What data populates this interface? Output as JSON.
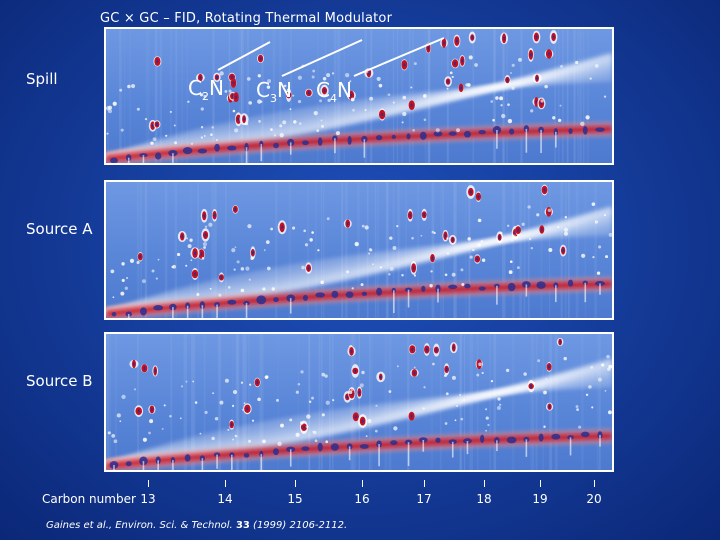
{
  "header": {
    "title": "GC × GC – FID,  Rotating Thermal Modulator"
  },
  "chart_data": {
    "type": "heatmap",
    "title": "GC × GC – FID,  Rotating Thermal Modulator",
    "xlabel": "Carbon number",
    "x_ticks": [
      "13",
      "14",
      "15",
      "16",
      "17",
      "18",
      "19",
      "20"
    ],
    "panels": [
      {
        "label": "Spill"
      },
      {
        "label": "Source A"
      },
      {
        "label": "Source B"
      }
    ],
    "annotations": [
      {
        "base": "C",
        "sub": "2",
        "suffix": "N"
      },
      {
        "base": "C",
        "sub": "3",
        "suffix": "N"
      },
      {
        "base": "C",
        "sub": "4",
        "suffix": "N"
      }
    ],
    "colors": {
      "background": "#1a46a8",
      "map_base": "#5a86d8",
      "hot": "#c41020",
      "peak_core": "#2a2f8f"
    }
  },
  "citation": {
    "prefix": "Gaines et al.,  Environ. Sci. & Technol.",
    "volume": "33",
    "rest": "(1999) 2106-2112."
  }
}
